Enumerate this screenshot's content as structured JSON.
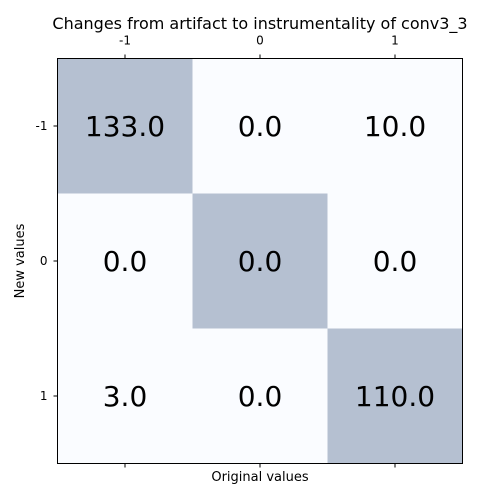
{
  "chart_data": {
    "type": "heatmap",
    "title": "Changes from artifact to instrumentality of conv3_3",
    "xlabel": "Original values",
    "ylabel": "New values",
    "x_categories": [
      "-1",
      "0",
      "1"
    ],
    "y_categories": [
      "-1",
      "0",
      "1"
    ],
    "x_ticks_position": "top",
    "matrix": [
      [
        "133.0",
        "0.0",
        "10.0"
      ],
      [
        "0.0",
        "0.0",
        "0.0"
      ],
      [
        "3.0",
        "0.0",
        "110.0"
      ]
    ],
    "highlight": [
      [
        true,
        false,
        false
      ],
      [
        false,
        true,
        false
      ],
      [
        false,
        false,
        true
      ]
    ],
    "colors": {
      "highlight": "#b5c0d1",
      "background": "#fafcff",
      "frame": "#000000"
    },
    "grid": false
  }
}
